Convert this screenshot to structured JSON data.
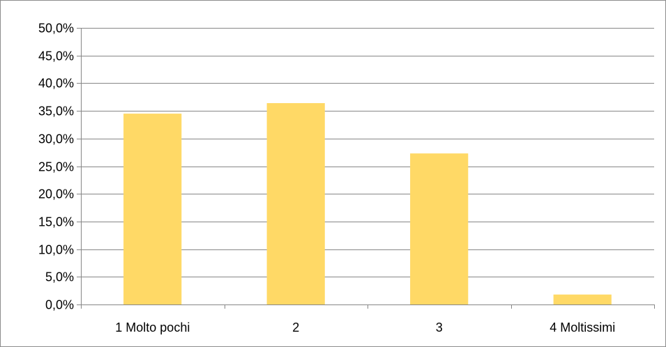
{
  "chart_data": {
    "type": "bar",
    "categories": [
      "1 Molto pochi",
      "2",
      "3",
      "4 Moltissimi"
    ],
    "values": [
      34.5,
      36.4,
      27.3,
      1.8
    ],
    "y_ticks": [
      "0,0%",
      "5,0%",
      "10,0%",
      "15,0%",
      "20,0%",
      "25,0%",
      "30,0%",
      "35,0%",
      "40,0%",
      "45,0%",
      "50,0%"
    ],
    "ylim": [
      0,
      50
    ],
    "y_step": 5,
    "grid": true,
    "legend": "none",
    "bar_color": "#FFD966",
    "grid_color": "#868686",
    "axis_color": "#868686"
  }
}
